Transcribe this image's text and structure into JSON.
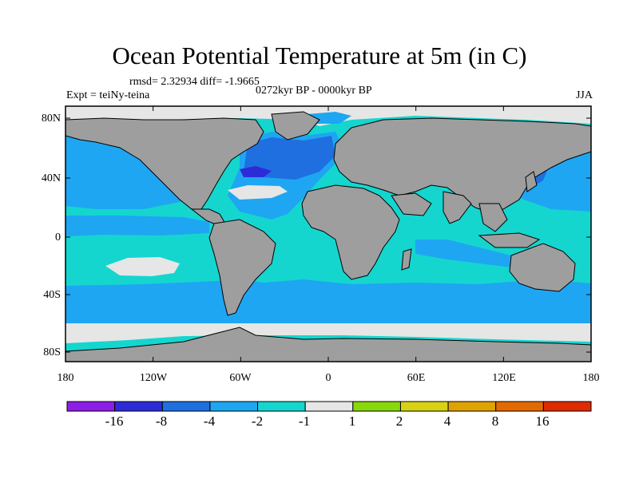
{
  "title": "Ocean Potential Temperature at 5m (in C)",
  "stats": "rmsd= 2.32934 diff= -1.9665",
  "experiment": "Expt = teiNy-teina",
  "period": "0272kyr BP - 0000kyr BP",
  "season": "JJA",
  "axes": {
    "lat_ticks": [
      "80N",
      "40N",
      "0",
      "40S",
      "80S"
    ],
    "lon_ticks": [
      "180",
      "120W",
      "60W",
      "0",
      "60E",
      "120E",
      "180"
    ]
  },
  "colorbar": {
    "colors": [
      "#8d1ee6",
      "#2d2bd8",
      "#1f6fe0",
      "#1ea6f2",
      "#14d6cf",
      "#e6e6e6",
      "#88d80c",
      "#d7d214",
      "#dfa200",
      "#e46a00",
      "#de2c00"
    ],
    "labels": [
      "-16",
      "-8",
      "-4",
      "-2",
      "-1",
      "1",
      "2",
      "4",
      "8",
      "16"
    ]
  },
  "map_colors": {
    "land": "#9e9e9e",
    "ocean_base": "#14d6cf",
    "band_blue": "#1ea6f2",
    "deep_blue": "#1f6fe0",
    "darkest_blue": "#2d2bd8",
    "near_zero": "#e6e6e6"
  }
}
